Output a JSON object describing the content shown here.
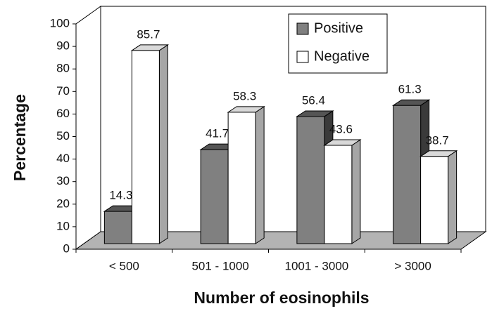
{
  "chart_data": {
    "type": "bar3d",
    "xlabel": "Number of eosinophils",
    "ylabel": "Percentage",
    "categories": [
      "< 500",
      "501 - 1000",
      "1001 - 3000",
      "> 3000"
    ],
    "series": [
      {
        "name": "Positive",
        "color": "#808080",
        "values": [
          14.3,
          41.7,
          56.4,
          61.3
        ]
      },
      {
        "name": "Negative",
        "color": "#ffffff",
        "values": [
          85.7,
          58.3,
          43.6,
          38.7
        ]
      }
    ],
    "ylim": [
      0,
      100
    ],
    "yticks": [
      0,
      10,
      20,
      30,
      40,
      50,
      60,
      70,
      80,
      90,
      100
    ],
    "legend": "upper right"
  }
}
